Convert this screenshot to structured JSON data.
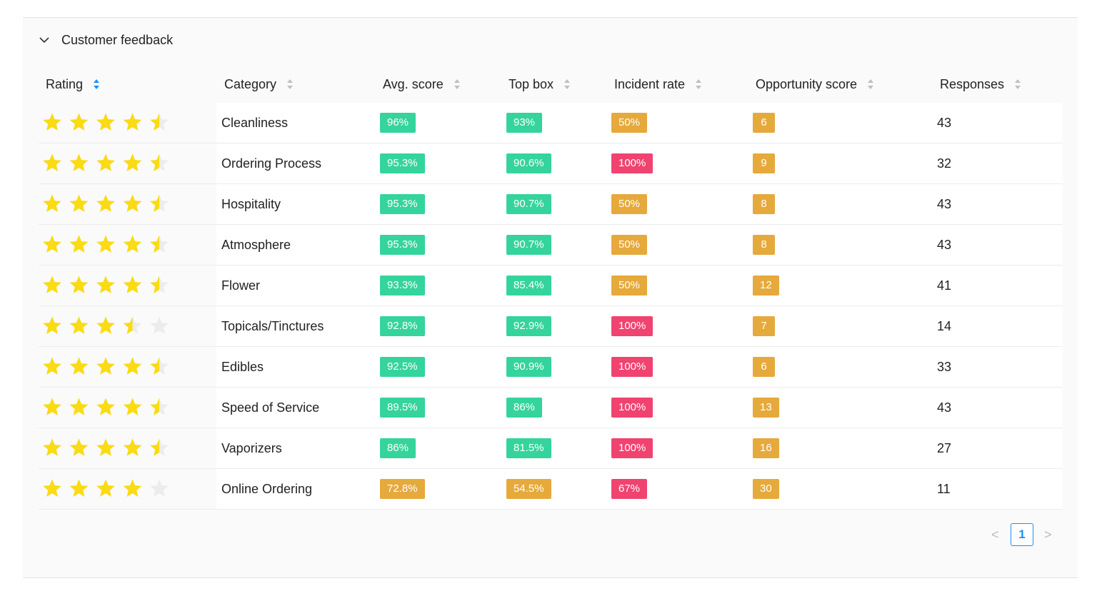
{
  "section_title": "Customer feedback",
  "table": {
    "columns": [
      "Rating",
      "Category",
      "Avg. score",
      "Top box",
      "Incident rate",
      "Opportunity score",
      "Responses"
    ],
    "rows": [
      {
        "rating": 4.5,
        "category": "Cleanliness",
        "avg": {
          "text": "96%",
          "color": "#35d49c"
        },
        "top": {
          "text": "93%",
          "color": "#35d49c"
        },
        "incident": {
          "text": "50%",
          "color": "#e6a93c"
        },
        "opportunity": {
          "text": "6",
          "color": "#e6a93c"
        },
        "responses": "43"
      },
      {
        "rating": 4.5,
        "category": "Ordering Process",
        "avg": {
          "text": "95.3%",
          "color": "#35d49c"
        },
        "top": {
          "text": "90.6%",
          "color": "#35d49c"
        },
        "incident": {
          "text": "100%",
          "color": "#f0436f"
        },
        "opportunity": {
          "text": "9",
          "color": "#e6a93c"
        },
        "responses": "32"
      },
      {
        "rating": 4.5,
        "category": "Hospitality",
        "avg": {
          "text": "95.3%",
          "color": "#35d49c"
        },
        "top": {
          "text": "90.7%",
          "color": "#35d49c"
        },
        "incident": {
          "text": "50%",
          "color": "#e6a93c"
        },
        "opportunity": {
          "text": "8",
          "color": "#e6a93c"
        },
        "responses": "43"
      },
      {
        "rating": 4.5,
        "category": "Atmosphere",
        "avg": {
          "text": "95.3%",
          "color": "#35d49c"
        },
        "top": {
          "text": "90.7%",
          "color": "#35d49c"
        },
        "incident": {
          "text": "50%",
          "color": "#e6a93c"
        },
        "opportunity": {
          "text": "8",
          "color": "#e6a93c"
        },
        "responses": "43"
      },
      {
        "rating": 4.5,
        "category": "Flower",
        "avg": {
          "text": "93.3%",
          "color": "#35d49c"
        },
        "top": {
          "text": "85.4%",
          "color": "#35d49c"
        },
        "incident": {
          "text": "50%",
          "color": "#e6a93c"
        },
        "opportunity": {
          "text": "12",
          "color": "#e6a93c"
        },
        "responses": "41"
      },
      {
        "rating": 3.5,
        "category": "Topicals/Tinctures",
        "avg": {
          "text": "92.8%",
          "color": "#35d49c"
        },
        "top": {
          "text": "92.9%",
          "color": "#35d49c"
        },
        "incident": {
          "text": "100%",
          "color": "#f0436f"
        },
        "opportunity": {
          "text": "7",
          "color": "#e6a93c"
        },
        "responses": "14"
      },
      {
        "rating": 4.5,
        "category": "Edibles",
        "avg": {
          "text": "92.5%",
          "color": "#35d49c"
        },
        "top": {
          "text": "90.9%",
          "color": "#35d49c"
        },
        "incident": {
          "text": "100%",
          "color": "#f0436f"
        },
        "opportunity": {
          "text": "6",
          "color": "#e6a93c"
        },
        "responses": "33"
      },
      {
        "rating": 4.5,
        "category": "Speed of Service",
        "avg": {
          "text": "89.5%",
          "color": "#35d49c"
        },
        "top": {
          "text": "86%",
          "color": "#35d49c"
        },
        "incident": {
          "text": "100%",
          "color": "#f0436f"
        },
        "opportunity": {
          "text": "13",
          "color": "#e6a93c"
        },
        "responses": "43"
      },
      {
        "rating": 4.5,
        "category": "Vaporizers",
        "avg": {
          "text": "86%",
          "color": "#35d49c"
        },
        "top": {
          "text": "81.5%",
          "color": "#35d49c"
        },
        "incident": {
          "text": "100%",
          "color": "#f0436f"
        },
        "opportunity": {
          "text": "16",
          "color": "#e6a93c"
        },
        "responses": "27"
      },
      {
        "rating": 4,
        "category": "Online Ordering",
        "avg": {
          "text": "72.8%",
          "color": "#e6a93c"
        },
        "top": {
          "text": "54.5%",
          "color": "#e6a93c"
        },
        "incident": {
          "text": "67%",
          "color": "#f0436f"
        },
        "opportunity": {
          "text": "30",
          "color": "#e6a93c"
        },
        "responses": "11"
      }
    ]
  },
  "pagination": {
    "current": "1"
  }
}
